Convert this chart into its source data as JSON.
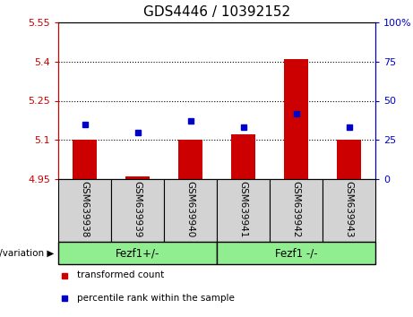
{
  "title": "GDS4446 / 10392152",
  "samples": [
    "GSM639938",
    "GSM639939",
    "GSM639940",
    "GSM639941",
    "GSM639942",
    "GSM639943"
  ],
  "transformed_count": [
    5.1,
    4.96,
    5.1,
    5.12,
    5.41,
    5.1
  ],
  "percentile_rank": [
    35,
    30,
    37,
    33,
    42,
    33
  ],
  "baseline": 4.95,
  "ylim_left": [
    4.95,
    5.55
  ],
  "ylim_right": [
    0,
    100
  ],
  "yticks_left": [
    4.95,
    5.1,
    5.25,
    5.4,
    5.55
  ],
  "yticks_right": [
    0,
    25,
    50,
    75,
    100
  ],
  "ytick_labels_left": [
    "4.95",
    "5.1",
    "5.25",
    "5.4",
    "5.55"
  ],
  "ytick_labels_right": [
    "0",
    "25",
    "50",
    "75",
    "100%"
  ],
  "bar_color": "#cc0000",
  "square_color": "#0000cc",
  "groups": [
    {
      "label": "Fezf1+/-",
      "color": "#90ee90"
    },
    {
      "label": "Fezf1 -/-",
      "color": "#90ee90"
    }
  ],
  "legend_items": [
    {
      "color": "#cc0000",
      "label": "transformed count"
    },
    {
      "color": "#0000cc",
      "label": "percentile rank within the sample"
    }
  ],
  "tick_label_area_color": "#d3d3d3",
  "group_area_color": "#90ee90",
  "left_axis_color": "#cc0000",
  "right_axis_color": "#0000cc"
}
